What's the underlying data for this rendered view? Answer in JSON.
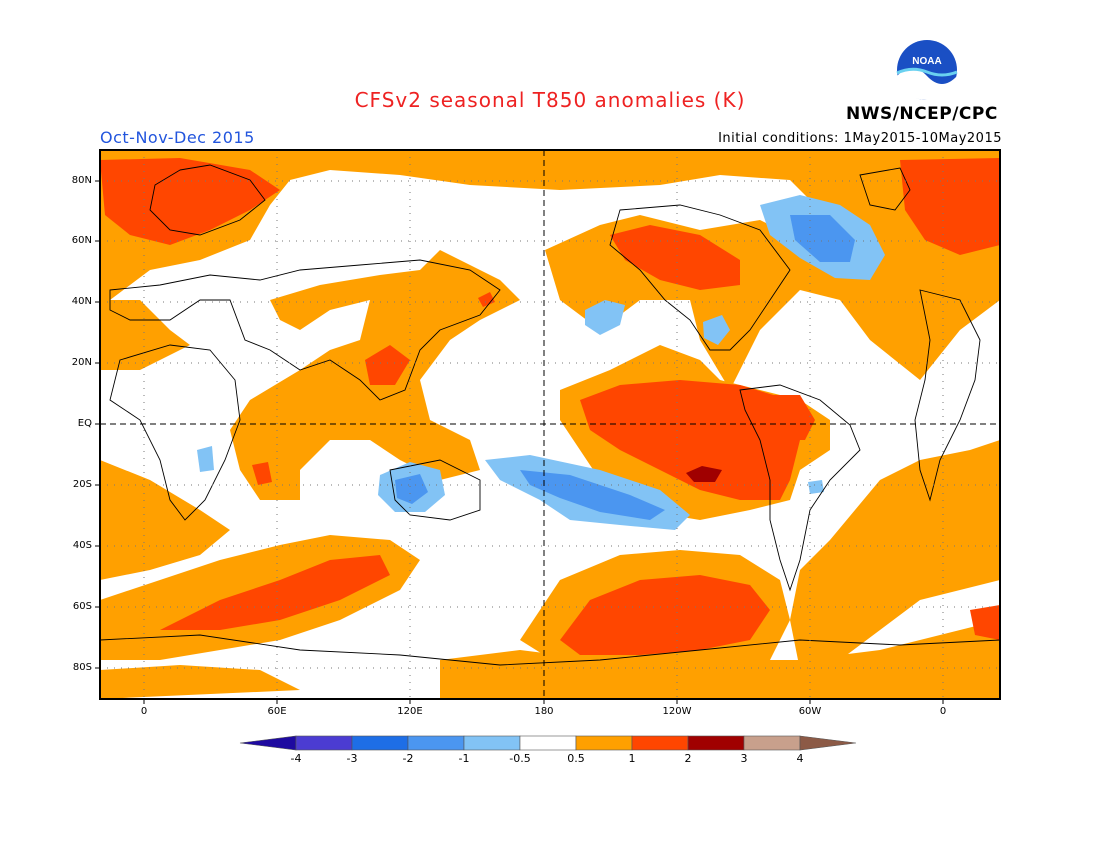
{
  "header": {
    "title": "CFSv2 seasonal T850 anomalies (K)",
    "title_color": "#ee2222",
    "agency": "NWS/NCEP/CPC",
    "season": "Oct-Nov-Dec 2015",
    "season_color": "#2255dd",
    "initial_conditions": "Initial conditions: 1May2015-10May2015",
    "logo_icon": "noaa-logo-icon",
    "logo_text": "NOAA"
  },
  "map": {
    "lat_labels": [
      "80N",
      "60N",
      "40N",
      "20N",
      "EQ",
      "20S",
      "40S",
      "60S",
      "80S"
    ],
    "lon_labels": [
      "0",
      "60E",
      "120E",
      "180",
      "120W",
      "60W",
      "0"
    ]
  },
  "colorbar": {
    "colors": [
      "#1e0aa0",
      "#4b3cd2",
      "#1e6ee6",
      "#4b96f0",
      "#82c3f5",
      "#ffffff",
      "#ffa000",
      "#ff4600",
      "#a00000",
      "#c8a08c",
      "#8c5a46"
    ],
    "labels": [
      "-4",
      "-3",
      "-2",
      "-1",
      "-0.5",
      "0.5",
      "1",
      "2",
      "3",
      "4"
    ]
  }
}
